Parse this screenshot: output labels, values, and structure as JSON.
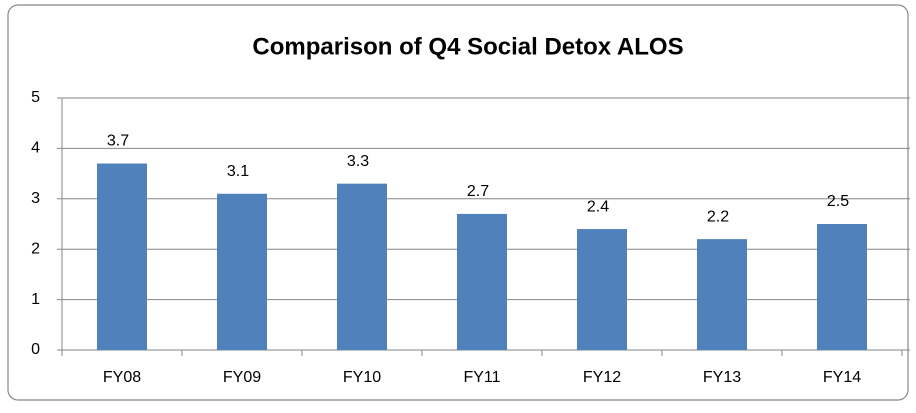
{
  "chart_data": {
    "type": "bar",
    "title": "Comparison of Q4 Social Detox ALOS",
    "categories": [
      "FY08",
      "FY09",
      "FY10",
      "FY11",
      "FY12",
      "FY13",
      "FY14"
    ],
    "values": [
      3.7,
      3.1,
      3.3,
      2.7,
      2.4,
      2.2,
      2.5
    ],
    "color": "#4f81bd",
    "ylim": [
      0,
      5
    ],
    "yticks": [
      0,
      1,
      2,
      3,
      4,
      5
    ],
    "grid": true
  }
}
